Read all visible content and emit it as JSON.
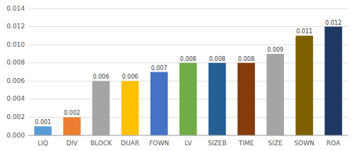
{
  "chart_data": {
    "type": "bar",
    "categories": [
      "LIQ",
      "DIV",
      "BLOCK",
      "DUAR",
      "FOWN",
      "LV",
      "SIZEB",
      "TIME",
      "SIZE",
      "SOWN",
      "ROA"
    ],
    "values": [
      0.001,
      0.002,
      0.006,
      0.006,
      0.007,
      0.008,
      0.008,
      0.008,
      0.009,
      0.011,
      0.012
    ],
    "colors": [
      "#5b9bd5",
      "#ed7d31",
      "#a5a5a5",
      "#ffc000",
      "#4472c4",
      "#70ad47",
      "#255e91",
      "#843c0c",
      "#a5a5a5",
      "#7f6000",
      "#1f3864"
    ],
    "ylim": [
      0,
      0.014
    ],
    "yticks": [
      {
        "value": 0,
        "label": "0.000"
      },
      0.002,
      0.004,
      0.006,
      0.008,
      {
        "value": 0.01,
        "label": "0.010"
      },
      0.012,
      0.014
    ],
    "grid": true,
    "data_labels": true
  }
}
